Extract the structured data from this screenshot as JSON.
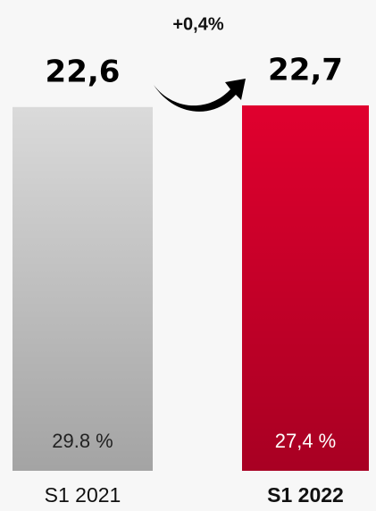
{
  "chart_data": {
    "type": "bar",
    "annotation": "+0,4%",
    "categories": [
      "S1 2021",
      "S1 2022"
    ],
    "values": [
      22.6,
      22.7
    ],
    "value_labels": [
      "22,6",
      "22,7"
    ],
    "inner_labels": [
      "29.8 %",
      "27,4 %"
    ],
    "colors": [
      "#dadada",
      "#e0002e"
    ],
    "ylim": [
      0,
      22.7
    ]
  }
}
